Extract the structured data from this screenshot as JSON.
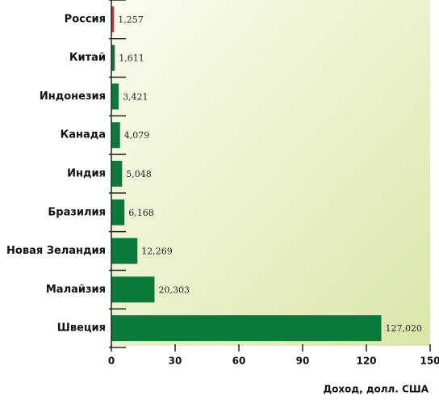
{
  "chart_data": {
    "type": "bar",
    "orientation": "horizontal",
    "categories": [
      "Россия",
      "Китай",
      "Индонезия",
      "Канада",
      "Индия",
      "Бразилия",
      "Новая Зеландия",
      "Малайзия",
      "Швеция"
    ],
    "values": [
      1.257,
      1.611,
      3.421,
      4.079,
      5.048,
      6.168,
      12.269,
      20.303,
      127.02
    ],
    "value_labels": [
      "1,257",
      "1,611",
      "3,421",
      "4,079",
      "5,048",
      "6,168",
      "12,269",
      "20,303",
      "127,020"
    ],
    "colors": [
      "#c0392b",
      "#0a7a3c",
      "#0a7a3c",
      "#0a7a3c",
      "#0a7a3c",
      "#0a7a3c",
      "#0a7a3c",
      "#0a7a3c",
      "#0a7a3c"
    ],
    "xlim": [
      0,
      150
    ],
    "xticks": [
      0,
      30,
      60,
      90,
      120,
      150
    ],
    "x_label": "Доход, долл. США"
  }
}
